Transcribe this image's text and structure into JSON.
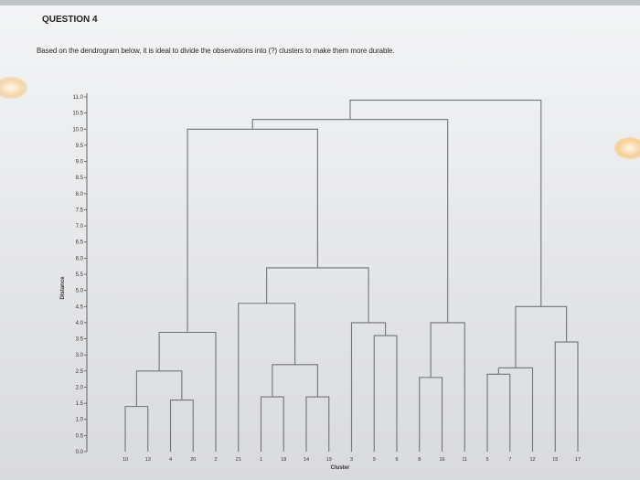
{
  "question": {
    "title": "QUESTION 4",
    "text": "Based on the dendrogram below, it is ideal to divide the observations into (?) clusters to make them more durable."
  },
  "chart_data": {
    "type": "dendrogram",
    "ylabel": "Distance",
    "xlabel": "Cluster",
    "ylim": [
      0,
      11
    ],
    "y_ticks": [
      "0.0",
      "0.5",
      "1.0",
      "1.5",
      "2.0",
      "2.5",
      "3.0",
      "3.5",
      "4.0",
      "4.5",
      "5.0",
      "5.5",
      "6.0",
      "6.5",
      "7.0",
      "7.5",
      "8.0",
      "8.5",
      "9.0",
      "9.5",
      "10.0",
      "10.5",
      "11.0"
    ],
    "leaves": [
      "10",
      "13",
      "4",
      "20",
      "2",
      "21",
      "1",
      "18",
      "14",
      "19",
      "3",
      "9",
      "6",
      "8",
      "16",
      "11",
      "5",
      "7",
      "12",
      "15",
      "17"
    ],
    "merges": [
      {
        "a": "10",
        "b": "13",
        "height": 1.4
      },
      {
        "a": "4",
        "b": "20",
        "height": 1.6
      },
      {
        "a": "m0",
        "b": "m1",
        "height": 2.5
      },
      {
        "a": "m2",
        "b": "2",
        "height": 3.7
      },
      {
        "a": "1",
        "b": "18",
        "height": 1.7
      },
      {
        "a": "14",
        "b": "19",
        "height": 1.7
      },
      {
        "a": "m4",
        "b": "m5",
        "height": 2.7
      },
      {
        "a": "21",
        "b": "m6",
        "height": 4.6
      },
      {
        "a": "9",
        "b": "6",
        "height": 3.6
      },
      {
        "a": "3",
        "b": "m8",
        "height": 4.0
      },
      {
        "a": "m7",
        "b": "m9",
        "height": 5.7
      },
      {
        "a": "m3",
        "b": "m10",
        "height": 10.0
      },
      {
        "a": "8",
        "b": "16",
        "height": 2.3
      },
      {
        "a": "m12",
        "b": "11",
        "height": 4.0
      },
      {
        "a": "m11",
        "b": "m13",
        "height": 10.3
      },
      {
        "a": "5",
        "b": "7",
        "height": 2.4
      },
      {
        "a": "m15",
        "b": "12",
        "height": 2.6
      },
      {
        "a": "15",
        "b": "17",
        "height": 3.4
      },
      {
        "a": "m16",
        "b": "m17",
        "height": 4.5
      },
      {
        "a": "m14",
        "b": "m18",
        "height": 10.9
      }
    ],
    "colors": {
      "link": "#6e7479",
      "axis": "#555555"
    }
  }
}
